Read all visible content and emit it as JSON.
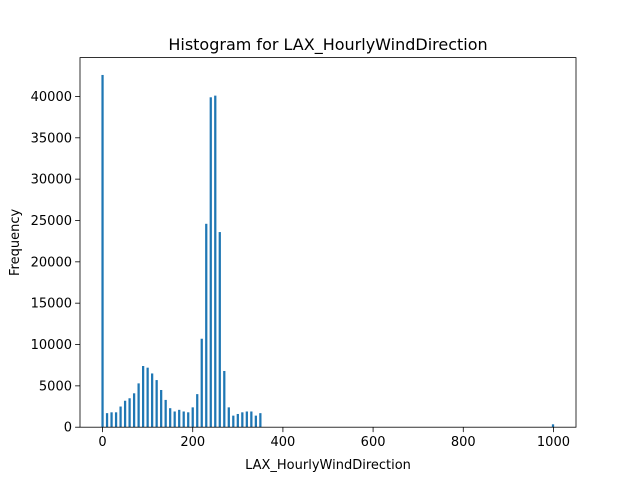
{
  "chart_data": {
    "type": "bar",
    "title": "Histogram for LAX_HourlyWindDirection",
    "xlabel": "LAX_HourlyWindDirection",
    "ylabel": "Frequency",
    "xlim": [
      -50,
      1050
    ],
    "ylim": [
      0,
      44700
    ],
    "xticks": [
      0,
      200,
      400,
      600,
      800,
      1000
    ],
    "yticks": [
      0,
      5000,
      10000,
      15000,
      20000,
      25000,
      30000,
      35000,
      40000
    ],
    "bar_width": 5,
    "color": "#1f77b4",
    "grid": false,
    "legend": "none",
    "x": [
      0,
      10,
      20,
      30,
      40,
      50,
      60,
      70,
      80,
      90,
      100,
      110,
      120,
      130,
      140,
      150,
      160,
      170,
      180,
      190,
      200,
      210,
      220,
      230,
      240,
      250,
      260,
      270,
      280,
      290,
      300,
      310,
      320,
      330,
      340,
      350,
      360,
      999
    ],
    "values": [
      42600,
      1700,
      1800,
      1800,
      2500,
      3200,
      3500,
      4100,
      5300,
      7400,
      7200,
      6500,
      5700,
      4500,
      3300,
      2300,
      1900,
      2100,
      1900,
      1800,
      2400,
      4000,
      10700,
      24600,
      39900,
      40100,
      23600,
      6800,
      2400,
      1400,
      1600,
      1800,
      1900,
      1900,
      1400,
      1700,
      0,
      350
    ]
  }
}
